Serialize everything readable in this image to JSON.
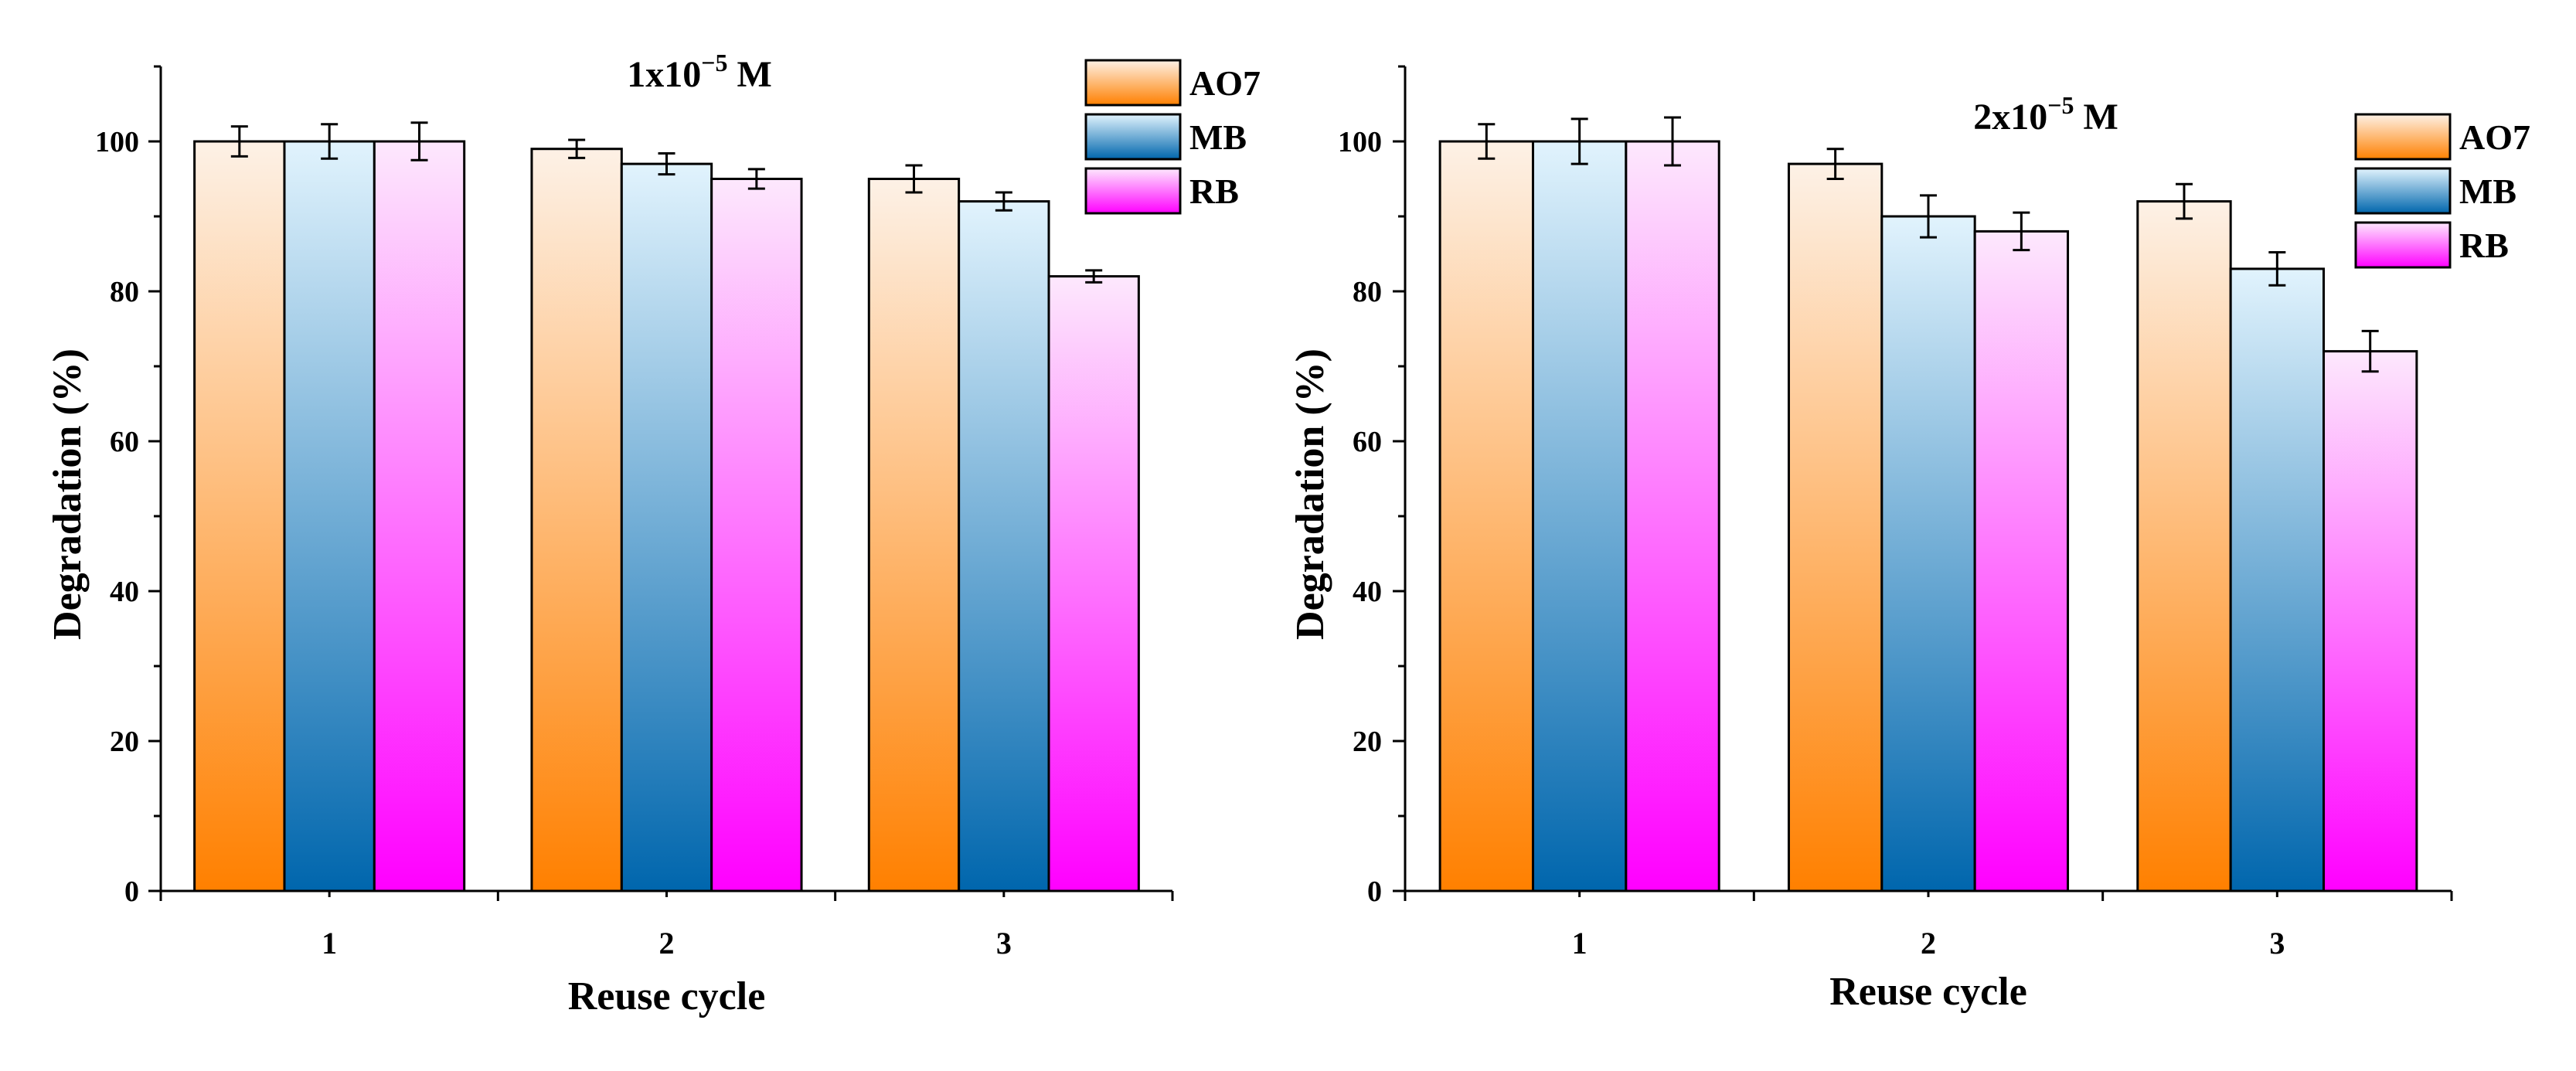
{
  "series_colors": {
    "AO7": {
      "top": "#fdf1e6",
      "bottom": "#ff8000"
    },
    "MB": {
      "top": "#e1f3fd",
      "bottom": "#0066ad"
    },
    "RB": {
      "top": "#fde8fd",
      "bottom": "#ff00ff"
    }
  },
  "chart_data": [
    {
      "type": "bar",
      "title_prefix": "1x10",
      "title_exp": "−5",
      "title_suffix": " M",
      "xlabel": "Reuse cycle",
      "ylabel": "Degradation (%)",
      "categories": [
        "1",
        "2",
        "3"
      ],
      "ylim": [
        0,
        110
      ],
      "yticks": [
        0,
        20,
        40,
        60,
        80,
        100
      ],
      "legend_position": "top-right",
      "series": [
        {
          "name": "AO7",
          "values": [
            100,
            99,
            95
          ],
          "errors": [
            2.0,
            1.2,
            1.8
          ]
        },
        {
          "name": "MB",
          "values": [
            100,
            97,
            92
          ],
          "errors": [
            2.3,
            1.4,
            1.2
          ]
        },
        {
          "name": "RB",
          "values": [
            100,
            95,
            82
          ],
          "errors": [
            2.5,
            1.3,
            0.8
          ]
        }
      ]
    },
    {
      "type": "bar",
      "title_prefix": "2x10",
      "title_exp": "−5",
      "title_suffix": " M",
      "xlabel": "Reuse cycle",
      "ylabel": "Degradation (%)",
      "categories": [
        "1",
        "2",
        "3"
      ],
      "ylim": [
        0,
        110
      ],
      "yticks": [
        0,
        20,
        40,
        60,
        80,
        100
      ],
      "legend_position": "top-right",
      "series": [
        {
          "name": "AO7",
          "values": [
            100,
            97,
            92
          ],
          "errors": [
            2.3,
            2.0,
            2.3
          ]
        },
        {
          "name": "MB",
          "values": [
            100,
            90,
            83
          ],
          "errors": [
            3.0,
            2.8,
            2.2
          ]
        },
        {
          "name": "RB",
          "values": [
            100,
            88,
            72
          ],
          "errors": [
            3.2,
            2.5,
            2.7
          ]
        }
      ]
    }
  ]
}
